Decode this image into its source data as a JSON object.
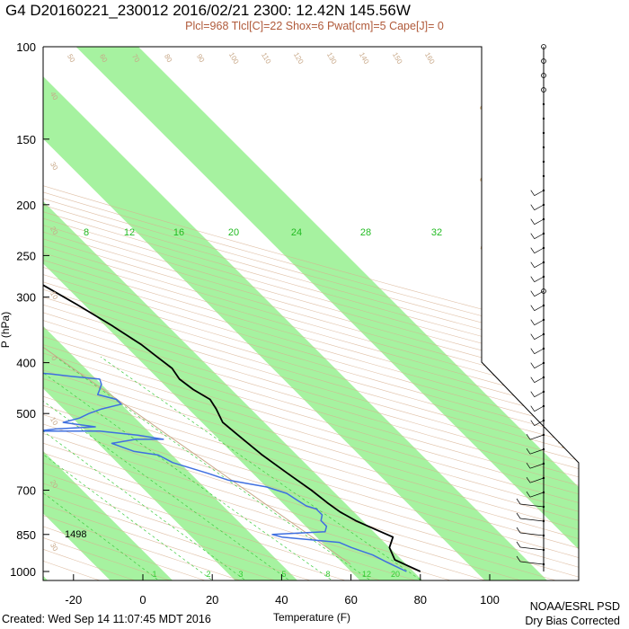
{
  "header": {
    "title": "G4 D20160221_230012 2016/02/21 2300: 12.42N 145.56W",
    "subtitle": "Plcl=968 Tlcl[C]=22 Shox=6 Pwat[cm]=5 Cape[J]= 0"
  },
  "footer": {
    "created": "Created: Wed Sep 14 11:07:45 MDT 2016",
    "credit_line1": "NOAA/ESRL PSD",
    "credit_line2": "Dry Bias Corrected"
  },
  "colors": {
    "band_fill": "#a6f2a0",
    "temperature_line": "#000000",
    "dewpoint_line": "#3f6fe0",
    "dry_adiabat": "#d8b090",
    "mixing_ratio": "#40cc40",
    "parcel_path": "#c8a888"
  },
  "chart_data": {
    "type": "line",
    "title": "G4 D20160221_230012 2016/02/21 2300: 12.42N 145.56W",
    "xlabel": "Temperature (F)",
    "ylabel": "P (hPa)",
    "x_ticks": [
      -20,
      0,
      20,
      40,
      60,
      80,
      100
    ],
    "y_ticks": [
      100,
      150,
      200,
      250,
      300,
      400,
      500,
      700,
      850,
      1000
    ],
    "y_scale": "log",
    "ylim": [
      1000,
      100
    ],
    "xlim": [
      -30,
      100
    ],
    "surface_height_label": "1498",
    "mixing_ratio_labels": [
      "8",
      "12",
      "16",
      "20",
      "24",
      "28",
      "32"
    ],
    "mixing_ratio_labels_bottom": [
      "1",
      "2",
      "3",
      "5",
      "8",
      "12",
      "20"
    ],
    "isotherm_labels_right": [
      "30",
      "20",
      "10",
      "0",
      "10",
      "30"
    ],
    "dry_adiabat_labels_top": [
      "50",
      "60",
      "70",
      "80",
      "90",
      "100",
      "110",
      "120",
      "130",
      "140",
      "150",
      "160"
    ],
    "dry_adiabat_labels_left": [
      "40",
      "30",
      "20",
      "10",
      "0",
      "10",
      "20",
      "30"
    ],
    "series": [
      {
        "name": "Temperature",
        "points": [
          [
            80,
            1000
          ],
          [
            78,
            975
          ],
          [
            76,
            950
          ],
          [
            78,
            900
          ],
          [
            82,
            860
          ],
          [
            79,
            830
          ],
          [
            76,
            800
          ],
          [
            74,
            770
          ],
          [
            73,
            740
          ],
          [
            72,
            700
          ],
          [
            70,
            650
          ],
          [
            68,
            600
          ],
          [
            67,
            560
          ],
          [
            66,
            520
          ],
          [
            68,
            490
          ],
          [
            69,
            470
          ],
          [
            67,
            450
          ],
          [
            66,
            430
          ],
          [
            67,
            410
          ],
          [
            66,
            390
          ],
          [
            65,
            370
          ],
          [
            62,
            340
          ],
          [
            58,
            310
          ],
          [
            53,
            280
          ],
          [
            50,
            260
          ],
          [
            46,
            240
          ],
          [
            43,
            220
          ],
          [
            40,
            200
          ],
          [
            37,
            190
          ]
        ]
      },
      {
        "name": "Dewpoint",
        "points": [
          [
            76,
            1000
          ],
          [
            73,
            960
          ],
          [
            71,
            930
          ],
          [
            67,
            900
          ],
          [
            65,
            880
          ],
          [
            50,
            860
          ],
          [
            48,
            850
          ],
          [
            56,
            845
          ],
          [
            64,
            840
          ],
          [
            66,
            820
          ],
          [
            66,
            800
          ],
          [
            68,
            780
          ],
          [
            68,
            760
          ],
          [
            66,
            750
          ],
          [
            65,
            730
          ],
          [
            64,
            710
          ],
          [
            62,
            700
          ],
          [
            60,
            690
          ],
          [
            51,
            670
          ],
          [
            47,
            650
          ],
          [
            40,
            620
          ],
          [
            38,
            600
          ],
          [
            32,
            590
          ],
          [
            30,
            580
          ],
          [
            28,
            570
          ],
          [
            36,
            560
          ],
          [
            44,
            560
          ],
          [
            38,
            550
          ],
          [
            28,
            540
          ],
          [
            10,
            540
          ],
          [
            4,
            545
          ],
          [
            16,
            535
          ],
          [
            28,
            530
          ],
          [
            20,
            520
          ],
          [
            26,
            510
          ],
          [
            30,
            500
          ],
          [
            35,
            490
          ],
          [
            42,
            480
          ],
          [
            42,
            470
          ],
          [
            38,
            460
          ],
          [
            40,
            450
          ],
          [
            42,
            440
          ],
          [
            43,
            430
          ],
          [
            36,
            425
          ],
          [
            30,
            420
          ],
          [
            20,
            415
          ],
          [
            10,
            410
          ],
          [
            -6,
            405
          ],
          [
            -5,
            400
          ],
          [
            -2,
            370
          ],
          [
            2,
            360
          ],
          [
            10,
            350
          ],
          [
            17,
            340
          ],
          [
            22,
            320
          ],
          [
            22,
            300
          ],
          [
            25,
            290
          ],
          [
            33,
            285
          ],
          [
            36,
            280
          ],
          [
            38,
            260
          ],
          [
            37,
            250
          ],
          [
            34,
            240
          ],
          [
            30,
            230
          ],
          [
            25,
            225
          ],
          [
            21,
            220
          ],
          [
            20,
            212
          ]
        ]
      }
    ]
  }
}
